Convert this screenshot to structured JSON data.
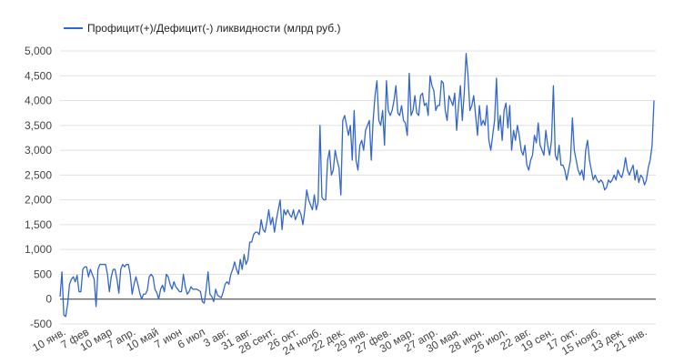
{
  "chart_data": {
    "type": "line",
    "title": "",
    "xlabel": "",
    "ylabel": "",
    "ylim": [
      -500,
      5000
    ],
    "yticks": [
      -500,
      0,
      500,
      1000,
      1500,
      2000,
      2500,
      3000,
      3500,
      4000,
      4500,
      5000
    ],
    "ytick_labels": [
      "-500",
      "0",
      "500",
      "1,000",
      "1,500",
      "2,000",
      "2,500",
      "3,000",
      "3,500",
      "4,000",
      "4,500",
      "5,000"
    ],
    "grid": true,
    "legend": {
      "position": "top-left"
    },
    "colors": {
      "series": "#3366cc",
      "grid": "#e0e0e0",
      "zero_line": "#333333"
    },
    "xtick_labels": [
      "10 янв.",
      "7 фев",
      "10 мар",
      "7 апр.",
      "10 май",
      "7 июн",
      "6 июл",
      "3 авг.",
      "31 авг.",
      "28 сент.",
      "26 окт.",
      "24 нояб.",
      "22 дек.",
      "29 янв.",
      "27 фев.",
      "30 мар.",
      "27 апр.",
      "30 мая.",
      "28 июн.",
      "26 июл.",
      "22 авг.",
      "19 сен.",
      "17 окт.",
      "15 нояб.",
      "13 дек.",
      "21 янв."
    ],
    "series": [
      {
        "name": "Профицит(+)/Дефицит(-) ликвидности (млрд руб.)",
        "values": [
          50,
          550,
          -320,
          -350,
          -100,
          300,
          400,
          450,
          350,
          480,
          150,
          150,
          600,
          650,
          650,
          450,
          600,
          500,
          400,
          -150,
          600,
          700,
          700,
          700,
          700,
          500,
          150,
          450,
          600,
          600,
          400,
          120,
          600,
          700,
          650,
          700,
          700,
          500,
          100,
          300,
          450,
          300,
          130,
          0,
          100,
          100,
          180,
          450,
          500,
          450,
          200,
          130,
          0,
          200,
          280,
          150,
          500,
          450,
          300,
          200,
          350,
          250,
          200,
          150,
          150,
          500,
          250,
          100,
          150,
          250,
          200,
          200,
          200,
          180,
          150,
          -50,
          -80,
          200,
          550,
          100,
          50,
          -50,
          200,
          80,
          50,
          30,
          150,
          300,
          350,
          300,
          500,
          600,
          750,
          600,
          500,
          800,
          600,
          900,
          700,
          800,
          1150,
          1150,
          1300,
          1350,
          1350,
          1300,
          1600,
          1400,
          1350,
          1550,
          1800,
          1500,
          1650,
          1350,
          1600,
          1800,
          2000,
          1400,
          1800,
          1700,
          1800,
          1700,
          1650,
          1800,
          1600,
          1700,
          1800,
          1700,
          1500,
          1800,
          2200,
          2000,
          1900,
          1800,
          2100,
          1800,
          1950,
          3500,
          2050,
          2000,
          2000,
          2800,
          3000,
          2500,
          2600,
          3000,
          2800,
          2650,
          2100,
          3600,
          3700,
          3500,
          3300,
          3500,
          2800,
          3800,
          2800,
          2600,
          3100,
          3200,
          3000,
          3400,
          3500,
          3600,
          2800,
          3600,
          4100,
          4400,
          3600,
          3500,
          3800,
          3100,
          4400,
          3800,
          3700,
          3800,
          4000,
          4300,
          3750,
          3700,
          3900,
          3600,
          3550,
          3300,
          4550,
          3700,
          3800,
          4100,
          3750,
          3700,
          4100,
          4150,
          3900,
          3950,
          3700,
          4500,
          4300,
          4200,
          3800,
          3900,
          3900,
          4400,
          4350,
          3800,
          3600,
          4100,
          4000,
          3900,
          4150,
          3400,
          3900,
          4300,
          3600,
          4150,
          4950,
          4500,
          3800,
          3900,
          4100,
          3700,
          3300,
          3900,
          3500,
          3600,
          3500,
          3900,
          3200,
          3000,
          3300,
          3600,
          4450,
          3400,
          3700,
          3200,
          3800,
          3950,
          3450,
          3900,
          3000,
          3400,
          3200,
          3500,
          3300,
          3000,
          2900,
          3100,
          2700,
          2600,
          2800,
          2900,
          3300,
          3150,
          3550,
          3100,
          3000,
          2900,
          3400,
          3100,
          2900,
          3200,
          4300,
          2900,
          2800,
          3100,
          2700,
          2700,
          2600,
          2400,
          2600,
          2800,
          3650,
          3000,
          2800,
          2600,
          2500,
          2600,
          2400,
          3000,
          3200,
          2800,
          2600,
          2400,
          2500,
          2400,
          2350,
          2400,
          2350,
          2200,
          2250,
          2400,
          2350,
          2400,
          2500,
          2400,
          2600,
          2500,
          2450,
          2600,
          2850,
          2600,
          2500,
          2600,
          2700,
          2400,
          2600,
          2350,
          2500,
          2450,
          2300,
          2400,
          2650,
          2800,
          3100,
          4000
        ]
      }
    ]
  }
}
